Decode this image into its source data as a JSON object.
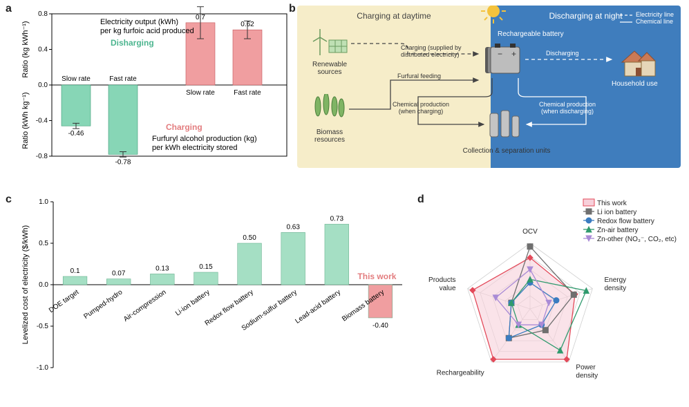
{
  "panel_a": {
    "label": "a",
    "top_title1": "Electricity output (kWh)",
    "top_title2": "per kg furfoic acid produced",
    "disharging_label": "Disharging",
    "disharging_color": "#4cb58f",
    "charging_label": "Charging",
    "charging_color": "#e37d7f",
    "bottom_title1": "Furfuryl alcohol production (kg)",
    "bottom_title2": "per kWh electricity stored",
    "y_top_label": "Ratio (kg kWh⁻¹)",
    "y_bot_label": "Ratio (kWh kg⁻¹)",
    "top_ylim": [
      0,
      0.8
    ],
    "bot_ylim": [
      -0.8,
      0
    ],
    "tick_step": 0.4,
    "discharge_bars": [
      {
        "x_label": "Slow rate",
        "value": -0.46,
        "err": 0.03,
        "val_txt": "-0.46"
      },
      {
        "x_label": "Fast rate",
        "value": -0.78,
        "err": 0.03,
        "val_txt": "-0.78"
      }
    ],
    "charge_bars": [
      {
        "x_label": "Slow rate",
        "value": 0.7,
        "err": 0.18,
        "val_txt": "0.7"
      },
      {
        "x_label": "Fast rate",
        "value": 0.62,
        "err": 0.1,
        "val_txt": "0.62"
      }
    ],
    "bar_colors": {
      "discharge": "#87d6b6",
      "charge": "#f09ea0"
    },
    "bar_width": 0.55
  },
  "panel_b": {
    "label": "b",
    "title_day": "Charging at daytime",
    "title_night": "Discharging at night",
    "legend_elec": "Electricity line",
    "legend_chem": "Chemical line",
    "renewable": "Renewable\nsources",
    "biomass": "Biomass\nresources",
    "charging_text": "Charging (supplied by\ndistributed electricity)",
    "furfural_text": "Furfural feeding",
    "chem_prod_day": "Chemical production\n(when charging)",
    "chem_prod_night": "Chemical production\n(when discharging)",
    "battery_text": "Rechargeable battery",
    "discharging_text": "Discharging",
    "household": "Household use",
    "collection": "Collection & separation units",
    "day_bg": "#f6edc9",
    "night_bg": "#3f7dbd"
  },
  "panel_c": {
    "label": "c",
    "y_label": "Levelized cost of electricity ($/kWh)",
    "ylim": [
      -1.0,
      1.0
    ],
    "tick_step": 0.5,
    "this_work_label": "This work",
    "this_work_color": "#e37d7f",
    "bar_color": "#a5dfc4",
    "bars": [
      {
        "x_label": "DOE target",
        "value": 0.1,
        "val_txt": "0.1"
      },
      {
        "x_label": "Pumped-hydro",
        "value": 0.07,
        "val_txt": "0.07"
      },
      {
        "x_label": "Air-compression",
        "value": 0.13,
        "val_txt": "0.13"
      },
      {
        "x_label": "Li-ion battery",
        "value": 0.15,
        "val_txt": "0.15"
      },
      {
        "x_label": "Redox flow battery",
        "value": 0.5,
        "val_txt": "0.50"
      },
      {
        "x_label": "Sodium-sulfur battery",
        "value": 0.63,
        "val_txt": "0.63"
      },
      {
        "x_label": "Lead-acid battery",
        "value": 0.73,
        "val_txt": "0.73"
      },
      {
        "x_label": "Biomass battery",
        "value": -0.4,
        "val_txt": "-0.40",
        "color": "#f09ea0"
      }
    ]
  },
  "panel_d": {
    "label": "d",
    "axes": [
      "OCV",
      "Energy density",
      "Power density",
      "Rechargeability",
      "Products value"
    ],
    "levels": 5,
    "series": [
      {
        "name": "This work",
        "color": "#e34a5a",
        "fill": "#f7d0da",
        "marker": "diamond",
        "values": [
          0.78,
          0.72,
          0.95,
          0.95,
          0.92
        ]
      },
      {
        "name": "Li ion battery",
        "color": "#6f6f6f",
        "fill": "none",
        "marker": "square",
        "values": [
          0.95,
          0.7,
          0.4,
          0.55,
          0.3
        ]
      },
      {
        "name": "Redox flow battery",
        "color": "#3a7cc0",
        "fill": "none",
        "marker": "circle",
        "values": [
          0.4,
          0.42,
          0.3,
          0.55,
          0.3
        ]
      },
      {
        "name": "Zn-air battery",
        "color": "#2f9a6d",
        "fill": "none",
        "marker": "triangle",
        "values": [
          0.45,
          0.9,
          0.78,
          0.3,
          0.3
        ]
      },
      {
        "name": "Zn-other (NO₃⁻, CO₂, etc)",
        "color": "#a98bd6",
        "fill": "none",
        "marker": "invtriangle",
        "values": [
          0.6,
          0.3,
          0.3,
          0.3,
          0.55
        ]
      }
    ],
    "legend_this_work": "This work"
  }
}
